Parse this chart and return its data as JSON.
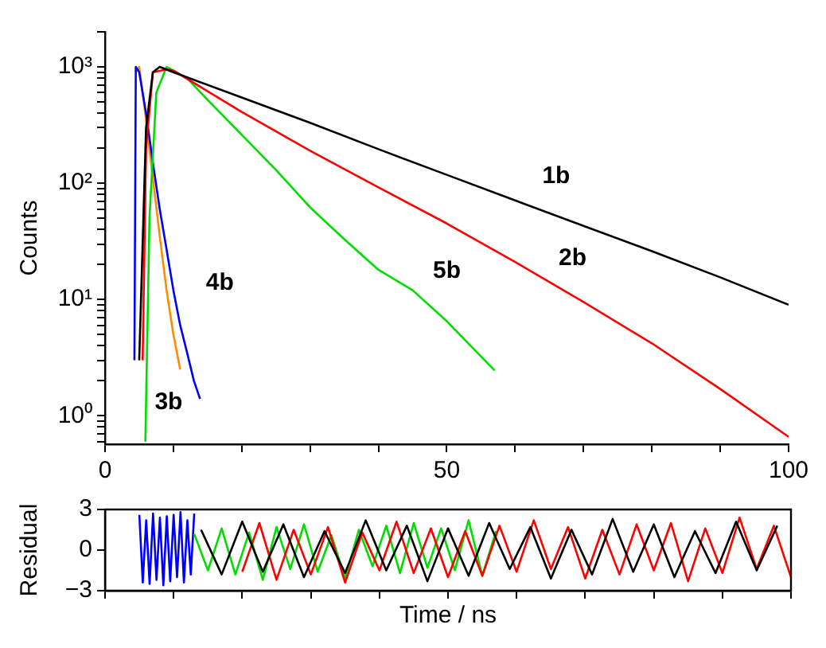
{
  "chart_data": [
    {
      "type": "line",
      "ylabel": "Counts",
      "log": "y",
      "grid": false,
      "legend": false,
      "marker": "none",
      "line_style": "solid",
      "tick_labels": "xy",
      "xlim": [
        0,
        100
      ],
      "ylim": [
        0.57,
        2000
      ],
      "xticks": [
        0,
        {
          "value": 10,
          "label": null
        },
        {
          "value": 20,
          "label": null
        },
        {
          "value": 30,
          "label": null
        },
        {
          "value": 40,
          "label": null
        },
        50,
        {
          "value": 60,
          "label": null
        },
        {
          "value": 70,
          "label": null
        },
        {
          "value": 80,
          "label": null
        },
        {
          "value": 90,
          "label": null
        },
        100
      ],
      "yticks": [
        {
          "value": 0.6,
          "label": null
        },
        {
          "value": 0.7,
          "label": null
        },
        {
          "value": 0.8,
          "label": null
        },
        {
          "value": 0.9,
          "label": null
        },
        {
          "value": 1,
          "label": "10⁰"
        },
        {
          "value": 2,
          "label": null
        },
        {
          "value": 3,
          "label": null
        },
        {
          "value": 4,
          "label": null
        },
        {
          "value": 5,
          "label": null
        },
        {
          "value": 6,
          "label": null
        },
        {
          "value": 7,
          "label": null
        },
        {
          "value": 8,
          "label": null
        },
        {
          "value": 9,
          "label": null
        },
        {
          "value": 10,
          "label": "10¹"
        },
        {
          "value": 20,
          "label": null
        },
        {
          "value": 30,
          "label": null
        },
        {
          "value": 40,
          "label": null
        },
        {
          "value": 50,
          "label": null
        },
        {
          "value": 60,
          "label": null
        },
        {
          "value": 70,
          "label": null
        },
        {
          "value": 80,
          "label": null
        },
        {
          "value": 90,
          "label": null
        },
        {
          "value": 100,
          "label": "10²"
        },
        {
          "value": 200,
          "label": null
        },
        {
          "value": 300,
          "label": null
        },
        {
          "value": 400,
          "label": null
        },
        {
          "value": 500,
          "label": null
        },
        {
          "value": 600,
          "label": null
        },
        {
          "value": 700,
          "label": null
        },
        {
          "value": 800,
          "label": null
        },
        {
          "value": 900,
          "label": null
        },
        {
          "value": 1000,
          "label": "10³"
        },
        {
          "value": 2000,
          "label": null
        }
      ],
      "series": [
        {
          "color": "#000000",
          "x": [
            5,
            6,
            7,
            8,
            10,
            20,
            30,
            40,
            50,
            60,
            70,
            80,
            90,
            100
          ],
          "values": [
            3,
            300,
            900,
            1000,
            900,
            545,
            330,
            196,
            118,
            71,
            43,
            26,
            15.5,
            9
          ]
        },
        {
          "color": "#ff0000",
          "x": [
            5.5,
            6,
            7,
            9,
            10,
            20,
            30,
            40,
            50,
            60,
            70,
            80,
            90,
            100
          ],
          "values": [
            3,
            200,
            900,
            950,
            930,
            410,
            190,
            92,
            45,
            21,
            9.5,
            4.2,
            1.7,
            0.66
          ]
        },
        {
          "color": "#00dd00",
          "x": [
            5.9,
            6.5,
            7.5,
            9,
            12,
            15,
            20,
            25,
            30,
            35,
            40,
            45,
            50,
            57
          ],
          "values": [
            0.6,
            50,
            600,
            1000,
            800,
            520,
            260,
            130,
            62,
            33,
            18,
            12,
            6.5,
            2.45
          ]
        },
        {
          "color": "#0000ff",
          "x": [
            4.3,
            4.5,
            5,
            6,
            7,
            8,
            9,
            10,
            11,
            12,
            13,
            13.9
          ],
          "values": [
            3,
            1000,
            900,
            400,
            150,
            60,
            27,
            12,
            6,
            3.5,
            2,
            1.4
          ]
        },
        {
          "color": "#ff8c00",
          "x": [
            4.5,
            5,
            6,
            7,
            8,
            9,
            10,
            11
          ],
          "values": [
            900,
            1000,
            350,
            110,
            35,
            12,
            5,
            2.5
          ]
        }
      ],
      "annotations": [
        "1b",
        "2b",
        "5b",
        "4b",
        "3b"
      ]
    },
    {
      "type": "line",
      "ylabel": "Residual",
      "xlabel": "Time / ns",
      "grid": false,
      "legend": false,
      "marker": "none",
      "line_style": "solid",
      "tick_labels": "y",
      "xlim": [
        0,
        100
      ],
      "ylim": [
        -3,
        3
      ],
      "xticks": [
        0,
        {
          "value": 10,
          "label": null
        },
        {
          "value": 20,
          "label": null
        },
        {
          "value": 30,
          "label": null
        },
        {
          "value": 40,
          "label": null
        },
        50,
        {
          "value": 60,
          "label": null
        },
        {
          "value": 70,
          "label": null
        },
        {
          "value": 80,
          "label": null
        },
        {
          "value": 90,
          "label": null
        },
        100
      ],
      "yticks": [
        {
          "value": -3,
          "label": "−3"
        },
        0,
        3
      ],
      "series": [
        {
          "color": "#000000",
          "x": [
            14,
            17,
            20,
            23,
            26,
            29,
            32,
            35,
            38,
            41,
            44,
            47,
            50,
            53,
            56,
            59,
            62,
            65,
            68,
            71,
            74,
            77,
            80,
            83,
            86,
            89,
            92,
            95,
            98
          ],
          "values": [
            1.5,
            -1.8,
            2.1,
            -1.6,
            1.9,
            -2.0,
            1.4,
            -1.7,
            2.2,
            -1.5,
            1.8,
            -2.3,
            1.6,
            -1.9,
            2.0,
            -1.4,
            1.7,
            -2.1,
            1.5,
            -1.8,
            2.3,
            -1.6,
            1.9,
            -2.0,
            1.4,
            -1.7,
            2.1,
            -1.5,
            1.8
          ]
        },
        {
          "color": "#ff0000",
          "x": [
            20,
            22.5,
            25,
            27.5,
            30,
            32.5,
            35,
            37.5,
            40,
            42.5,
            45,
            47.5,
            50,
            52.5,
            55,
            57.5,
            60,
            62.5,
            65,
            67.5,
            70,
            72.5,
            75,
            77.5,
            80,
            82.5,
            85,
            87.5,
            90,
            92.5,
            95,
            97.5,
            100
          ],
          "values": [
            -1.6,
            2.0,
            -2.2,
            1.5,
            -1.8,
            1.7,
            -2.4,
            1.3,
            -1.5,
            2.1,
            -1.7,
            1.6,
            -2.0,
            1.4,
            -1.9,
            1.8,
            -1.6,
            2.2,
            -1.4,
            1.7,
            -2.1,
            1.5,
            -1.8,
            1.9,
            -1.5,
            2.0,
            -2.3,
            1.6,
            -1.7,
            2.4,
            -1.4,
            1.8,
            -2.0
          ]
        },
        {
          "color": "#00dd00",
          "x": [
            13,
            15,
            17,
            19,
            21,
            23,
            25,
            27,
            29,
            31,
            33,
            35,
            37,
            39,
            41,
            43,
            45,
            47,
            49,
            51,
            53,
            55,
            57
          ],
          "values": [
            1.2,
            -1.5,
            1.6,
            -1.8,
            1.3,
            -2.2,
            1.7,
            -1.4,
            1.9,
            -1.6,
            1.1,
            -2.1,
            1.5,
            -1.2,
            1.8,
            -1.7,
            2.0,
            -1.3,
            1.6,
            -1.5,
            2.2,
            -1.9,
            1.4
          ]
        },
        {
          "color": "#0000ff",
          "x": [
            5,
            5.5,
            6,
            6.5,
            7,
            7.5,
            8,
            8.5,
            9,
            9.5,
            10,
            10.5,
            11,
            11.5,
            12,
            12.5,
            13
          ],
          "values": [
            2.6,
            -2.4,
            2.2,
            -2.5,
            2.7,
            -2.2,
            2.4,
            -2.6,
            2.5,
            -2.3,
            2.6,
            -2.0,
            2.8,
            -2.4,
            2.2,
            -1.8,
            2.7
          ]
        }
      ]
    }
  ]
}
